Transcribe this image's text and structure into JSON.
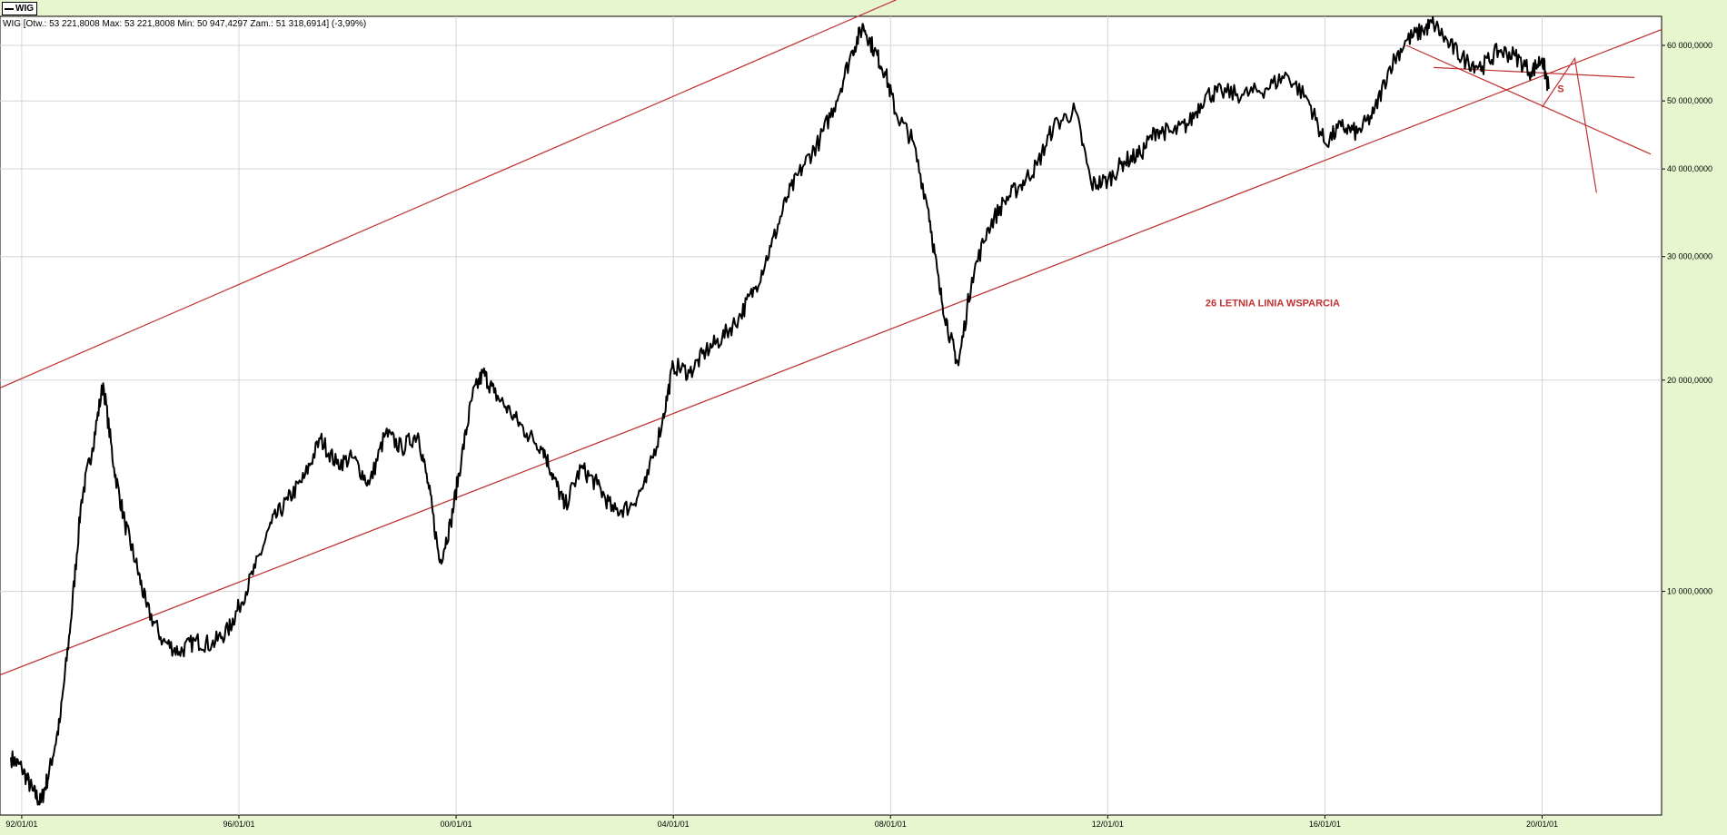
{
  "chart_data": {
    "type": "line",
    "series_label": "WIG",
    "header_text": "WIG [Otw.: 53 221,8008  Max: 53 221,8008  Min: 50 947,4297  Zam.: 51 318,6914] (-3,99%)",
    "y_scale": "log",
    "ylim": [
      4800,
      66000
    ],
    "xlim": [
      1991.6,
      2022.2
    ],
    "x_ticks": [
      {
        "value": 1992.0,
        "label": "92/01/01"
      },
      {
        "value": 1996.0,
        "label": "96/01/01"
      },
      {
        "value": 2000.0,
        "label": "00/01/01"
      },
      {
        "value": 2004.0,
        "label": "04/01/01"
      },
      {
        "value": 2008.0,
        "label": "08/01/01"
      },
      {
        "value": 2012.0,
        "label": "12/01/01"
      },
      {
        "value": 2016.0,
        "label": "16/01/01"
      },
      {
        "value": 2020.0,
        "label": "20/01/01"
      }
    ],
    "y_ticks": [
      {
        "value": 10000,
        "label": "10 000,0000"
      },
      {
        "value": 20000,
        "label": "20 000,0000"
      },
      {
        "value": 30000,
        "label": "30 000,0000"
      },
      {
        "value": 40000,
        "label": "40 000,0000"
      },
      {
        "value": 50000,
        "label": "50 000,0000"
      },
      {
        "value": 60000,
        "label": "60 000,0000"
      }
    ],
    "grid": true,
    "series": [
      {
        "name": "WIG",
        "color": "#000000",
        "points": [
          [
            1991.8,
            5800
          ],
          [
            1992.0,
            5600
          ],
          [
            1992.2,
            5200
          ],
          [
            1992.35,
            5000
          ],
          [
            1992.5,
            5500
          ],
          [
            1992.7,
            6500
          ],
          [
            1992.9,
            9000
          ],
          [
            1993.1,
            13500
          ],
          [
            1993.3,
            16000
          ],
          [
            1993.5,
            19800
          ],
          [
            1993.7,
            15000
          ],
          [
            1993.9,
            12500
          ],
          [
            1994.1,
            11000
          ],
          [
            1994.3,
            9500
          ],
          [
            1994.6,
            8500
          ],
          [
            1994.9,
            8200
          ],
          [
            1995.2,
            8500
          ],
          [
            1995.5,
            8400
          ],
          [
            1995.8,
            8800
          ],
          [
            1996.0,
            9500
          ],
          [
            1996.3,
            10800
          ],
          [
            1996.6,
            12500
          ],
          [
            1996.9,
            13500
          ],
          [
            1997.2,
            14500
          ],
          [
            1997.5,
            16500
          ],
          [
            1997.8,
            15200
          ],
          [
            1998.1,
            15500
          ],
          [
            1998.4,
            14200
          ],
          [
            1998.7,
            16800
          ],
          [
            1999.0,
            16000
          ],
          [
            1999.3,
            16800
          ],
          [
            1999.5,
            14000
          ],
          [
            1999.7,
            11000
          ],
          [
            1999.9,
            12500
          ],
          [
            2000.1,
            15500
          ],
          [
            2000.3,
            19000
          ],
          [
            2000.5,
            20500
          ],
          [
            2000.7,
            19200
          ],
          [
            2001.0,
            18000
          ],
          [
            2001.3,
            16800
          ],
          [
            2001.6,
            16000
          ],
          [
            2001.8,
            14500
          ],
          [
            2002.0,
            13200
          ],
          [
            2002.3,
            15000
          ],
          [
            2002.6,
            14200
          ],
          [
            2002.9,
            13000
          ],
          [
            2003.2,
            13200
          ],
          [
            2003.5,
            14300
          ],
          [
            2003.8,
            17500
          ],
          [
            2004.0,
            21000
          ],
          [
            2004.3,
            20500
          ],
          [
            2004.6,
            22000
          ],
          [
            2004.9,
            23000
          ],
          [
            2005.2,
            24500
          ],
          [
            2005.5,
            27000
          ],
          [
            2005.8,
            31000
          ],
          [
            2006.1,
            36500
          ],
          [
            2006.4,
            40500
          ],
          [
            2006.7,
            44000
          ],
          [
            2007.0,
            50000
          ],
          [
            2007.3,
            59000
          ],
          [
            2007.5,
            64000
          ],
          [
            2007.7,
            59000
          ],
          [
            2007.9,
            55000
          ],
          [
            2008.1,
            48000
          ],
          [
            2008.4,
            44000
          ],
          [
            2008.7,
            35000
          ],
          [
            2008.9,
            27000
          ],
          [
            2009.1,
            23000
          ],
          [
            2009.25,
            21000
          ],
          [
            2009.5,
            28000
          ],
          [
            2009.8,
            33000
          ],
          [
            2010.1,
            36000
          ],
          [
            2010.4,
            38000
          ],
          [
            2010.7,
            40500
          ],
          [
            2011.0,
            46000
          ],
          [
            2011.4,
            48500
          ],
          [
            2011.7,
            38000
          ],
          [
            2012.0,
            38500
          ],
          [
            2012.3,
            41000
          ],
          [
            2012.6,
            42000
          ],
          [
            2012.9,
            45500
          ],
          [
            2013.2,
            45000
          ],
          [
            2013.5,
            46500
          ],
          [
            2013.8,
            51000
          ],
          [
            2014.1,
            51500
          ],
          [
            2014.5,
            51000
          ],
          [
            2014.9,
            52000
          ],
          [
            2015.3,
            54500
          ],
          [
            2015.7,
            50000
          ],
          [
            2016.0,
            43500
          ],
          [
            2016.3,
            46000
          ],
          [
            2016.6,
            45000
          ],
          [
            2016.9,
            48000
          ],
          [
            2017.2,
            56000
          ],
          [
            2017.5,
            61000
          ],
          [
            2017.8,
            63000
          ],
          [
            2018.0,
            64500
          ],
          [
            2018.3,
            60000
          ],
          [
            2018.6,
            57000
          ],
          [
            2018.9,
            56000
          ],
          [
            2019.2,
            59000
          ],
          [
            2019.5,
            58000
          ],
          [
            2019.8,
            55000
          ],
          [
            2020.0,
            57500
          ],
          [
            2020.12,
            52000
          ]
        ]
      }
    ],
    "trend_lines": [
      {
        "label": "",
        "color": "#c03030",
        "points": [
          [
            1991.6,
            19500
          ],
          [
            2009.4,
            77000
          ]
        ]
      },
      {
        "label": "26 LETNIA LINIA WSPARCIA",
        "color": "#c03030",
        "points": [
          [
            1991.6,
            7600
          ],
          [
            2022.2,
            63200
          ]
        ]
      },
      {
        "label": "",
        "color": "#c03030",
        "points": [
          [
            2017.5,
            60000
          ],
          [
            2022.0,
            42000
          ]
        ]
      },
      {
        "label": "",
        "color": "#c03030",
        "points": [
          [
            2018.0,
            55800
          ],
          [
            2021.7,
            54000
          ]
        ]
      },
      {
        "label": "",
        "color": "#c03030",
        "points": [
          [
            2020.0,
            49000
          ],
          [
            2020.6,
            57500
          ],
          [
            2021.0,
            37000
          ]
        ]
      }
    ],
    "annotations": [
      {
        "text": "26 LETNIA LINIA WSPARCIA",
        "x": 2013.8,
        "y": 25500,
        "color": "#c03030"
      },
      {
        "text": "S",
        "x": 2020.28,
        "y": 51500,
        "color": "#c03030"
      }
    ]
  }
}
